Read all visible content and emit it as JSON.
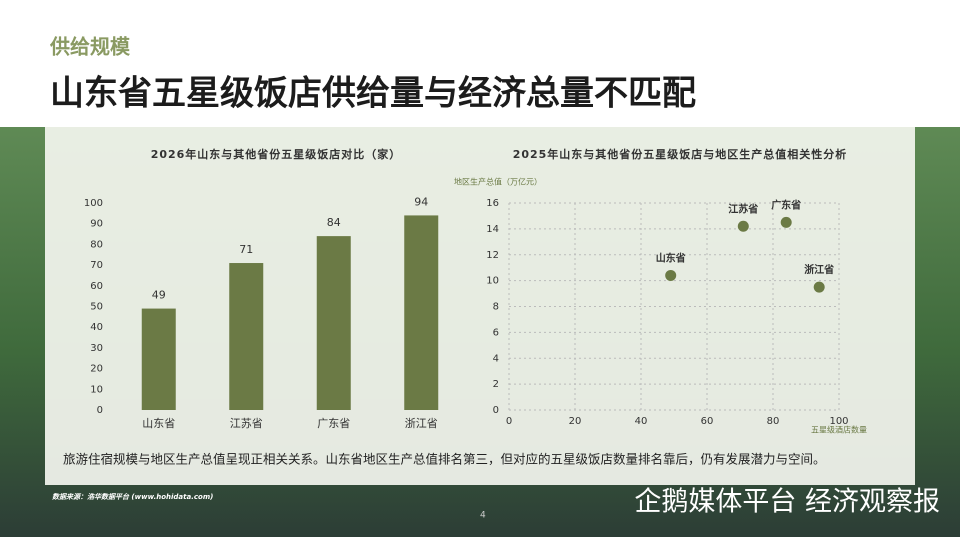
{
  "header": {
    "section": "供给规模",
    "title": "山东省五星级饭店供给量与经济总量不匹配"
  },
  "chart_data": [
    {
      "type": "bar",
      "title": "2026年山东与其他省份五星级饭店对比（家）",
      "categories": [
        "山东省",
        "江苏省",
        "广东省",
        "浙江省"
      ],
      "values": [
        49,
        71,
        84,
        94
      ],
      "color": "#6b7a45",
      "ylim": [
        0,
        100
      ],
      "yticks": [
        0,
        10,
        20,
        30,
        40,
        50,
        60,
        70,
        80,
        90,
        100
      ],
      "grid": false
    },
    {
      "type": "scatter",
      "title": "2025年山东与其他省份五星级饭店与地区生产总值相关性分析",
      "y_label": "地区生产总值（万亿元）",
      "x_label": "五星级酒店数量",
      "labels": [
        "山东省",
        "江苏省",
        "广东省",
        "浙江省"
      ],
      "x": [
        49,
        71,
        84,
        94
      ],
      "values": [
        10.4,
        14.2,
        14.5,
        9.5
      ],
      "color": "#6b7a45",
      "xlim": [
        0,
        100
      ],
      "xticks": [
        0,
        20,
        40,
        60,
        80,
        100
      ],
      "ylim": [
        0,
        16
      ],
      "yticks": [
        0,
        2,
        4,
        6,
        8,
        10,
        12,
        14,
        16
      ],
      "grid": true
    }
  ],
  "note": "旅游住宿规模与地区生产总值呈现正相关关系。山东省地区生产总值排名第三，但对应的五星级饭店数量排名靠后，仍有发展潜力与空间。",
  "source": "数据来源：浩华数据平台 (www.hohidata.com)",
  "page_number": "4",
  "watermark": "企鹅媒体平台 经济观察报"
}
